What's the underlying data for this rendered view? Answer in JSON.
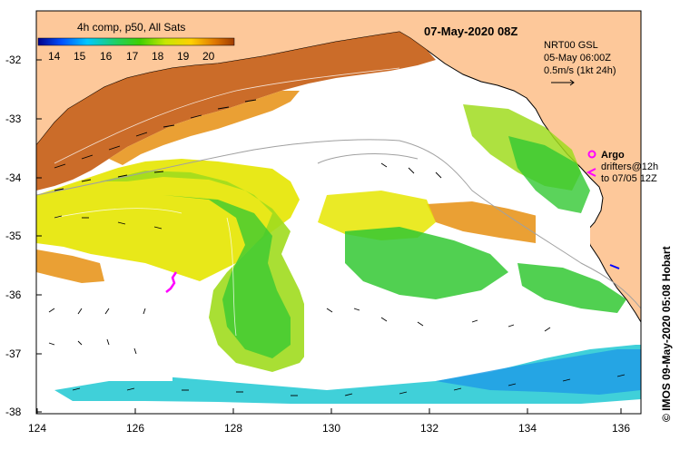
{
  "title": "07-May-2020 08Z",
  "legend": {
    "label": "4h comp, p50, All Sats",
    "ticks": [
      "14",
      "15",
      "16",
      "17",
      "18",
      "19",
      "20"
    ],
    "colors": [
      "#00008b",
      "#0050ff",
      "#00c8ff",
      "#20d060",
      "#40d000",
      "#c8e600",
      "#ffd000",
      "#e07800",
      "#a03c00"
    ]
  },
  "info": {
    "line1": "NRT00 GSL",
    "line2": "05-May 06:00Z",
    "line3": "0.5m/s (1kt 24h)"
  },
  "markers": {
    "argo_label": "Argo",
    "drifters_line1": "drifters@12h",
    "drifters_line2": "to 07/05 12Z",
    "argo_color": "#ff00ff"
  },
  "credit": "© IMOS 09-May-2020 05:08 Hobart",
  "axes": {
    "x_ticks": [
      "124",
      "126",
      "128",
      "130",
      "132",
      "134",
      "136"
    ],
    "y_ticks": [
      "-32",
      "-33",
      "-34",
      "-35",
      "-36",
      "-37",
      "-38"
    ]
  },
  "colors": {
    "land": "#fdc89a",
    "warm": "#c8641e",
    "orange": "#e8961e",
    "yellow": "#e6e600",
    "yellow_green": "#a0dc1e",
    "green": "#32c832",
    "cyan": "#1ec8d2",
    "blue": "#1e9ae6"
  }
}
